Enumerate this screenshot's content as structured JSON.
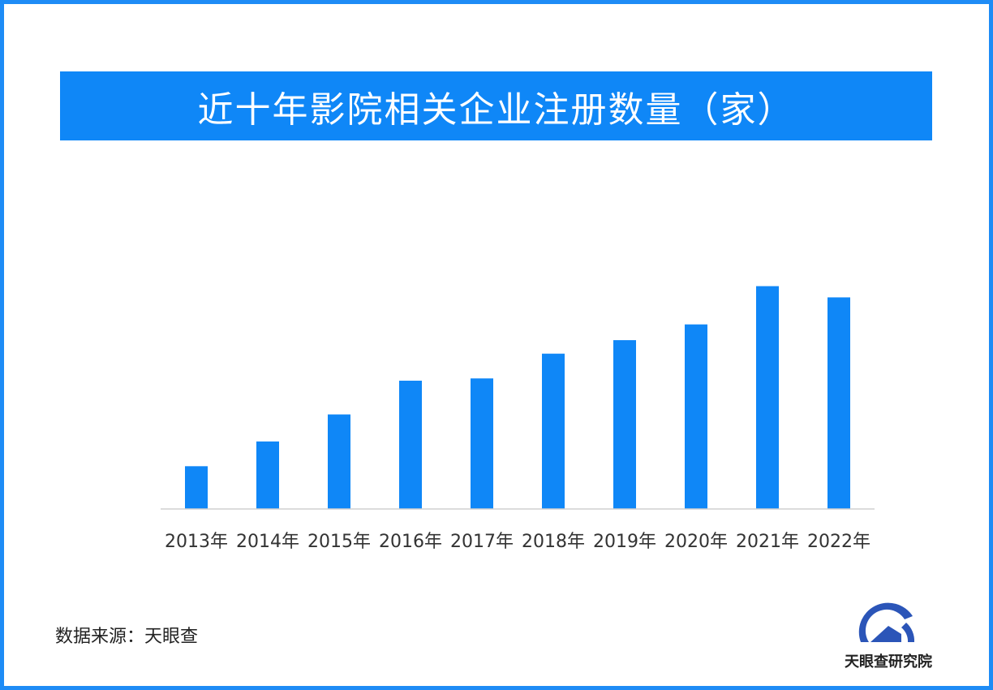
{
  "chart_data": {
    "type": "bar",
    "title": "近十年影院相关企业注册数量（家）",
    "categories": [
      "2013年",
      "2014年",
      "2015年",
      "2016年",
      "2017年",
      "2018年",
      "2019年",
      "2020年",
      "2021年",
      "2022年"
    ],
    "values": [
      19,
      30,
      42,
      57,
      58,
      69,
      75,
      82,
      99,
      94
    ],
    "ylim": [
      0,
      110
    ],
    "xlabel": "",
    "ylabel": "",
    "grid": false,
    "bar_color": "#0f87f7"
  },
  "footer": {
    "source": "数据来源：天眼查",
    "logo_text": "天眼查研究院",
    "logo_name": "tianyancha-logo-icon"
  },
  "colors": {
    "border": "#1e8cf6",
    "banner": "#0f87f7",
    "logo_blue": "#2b55b8"
  }
}
